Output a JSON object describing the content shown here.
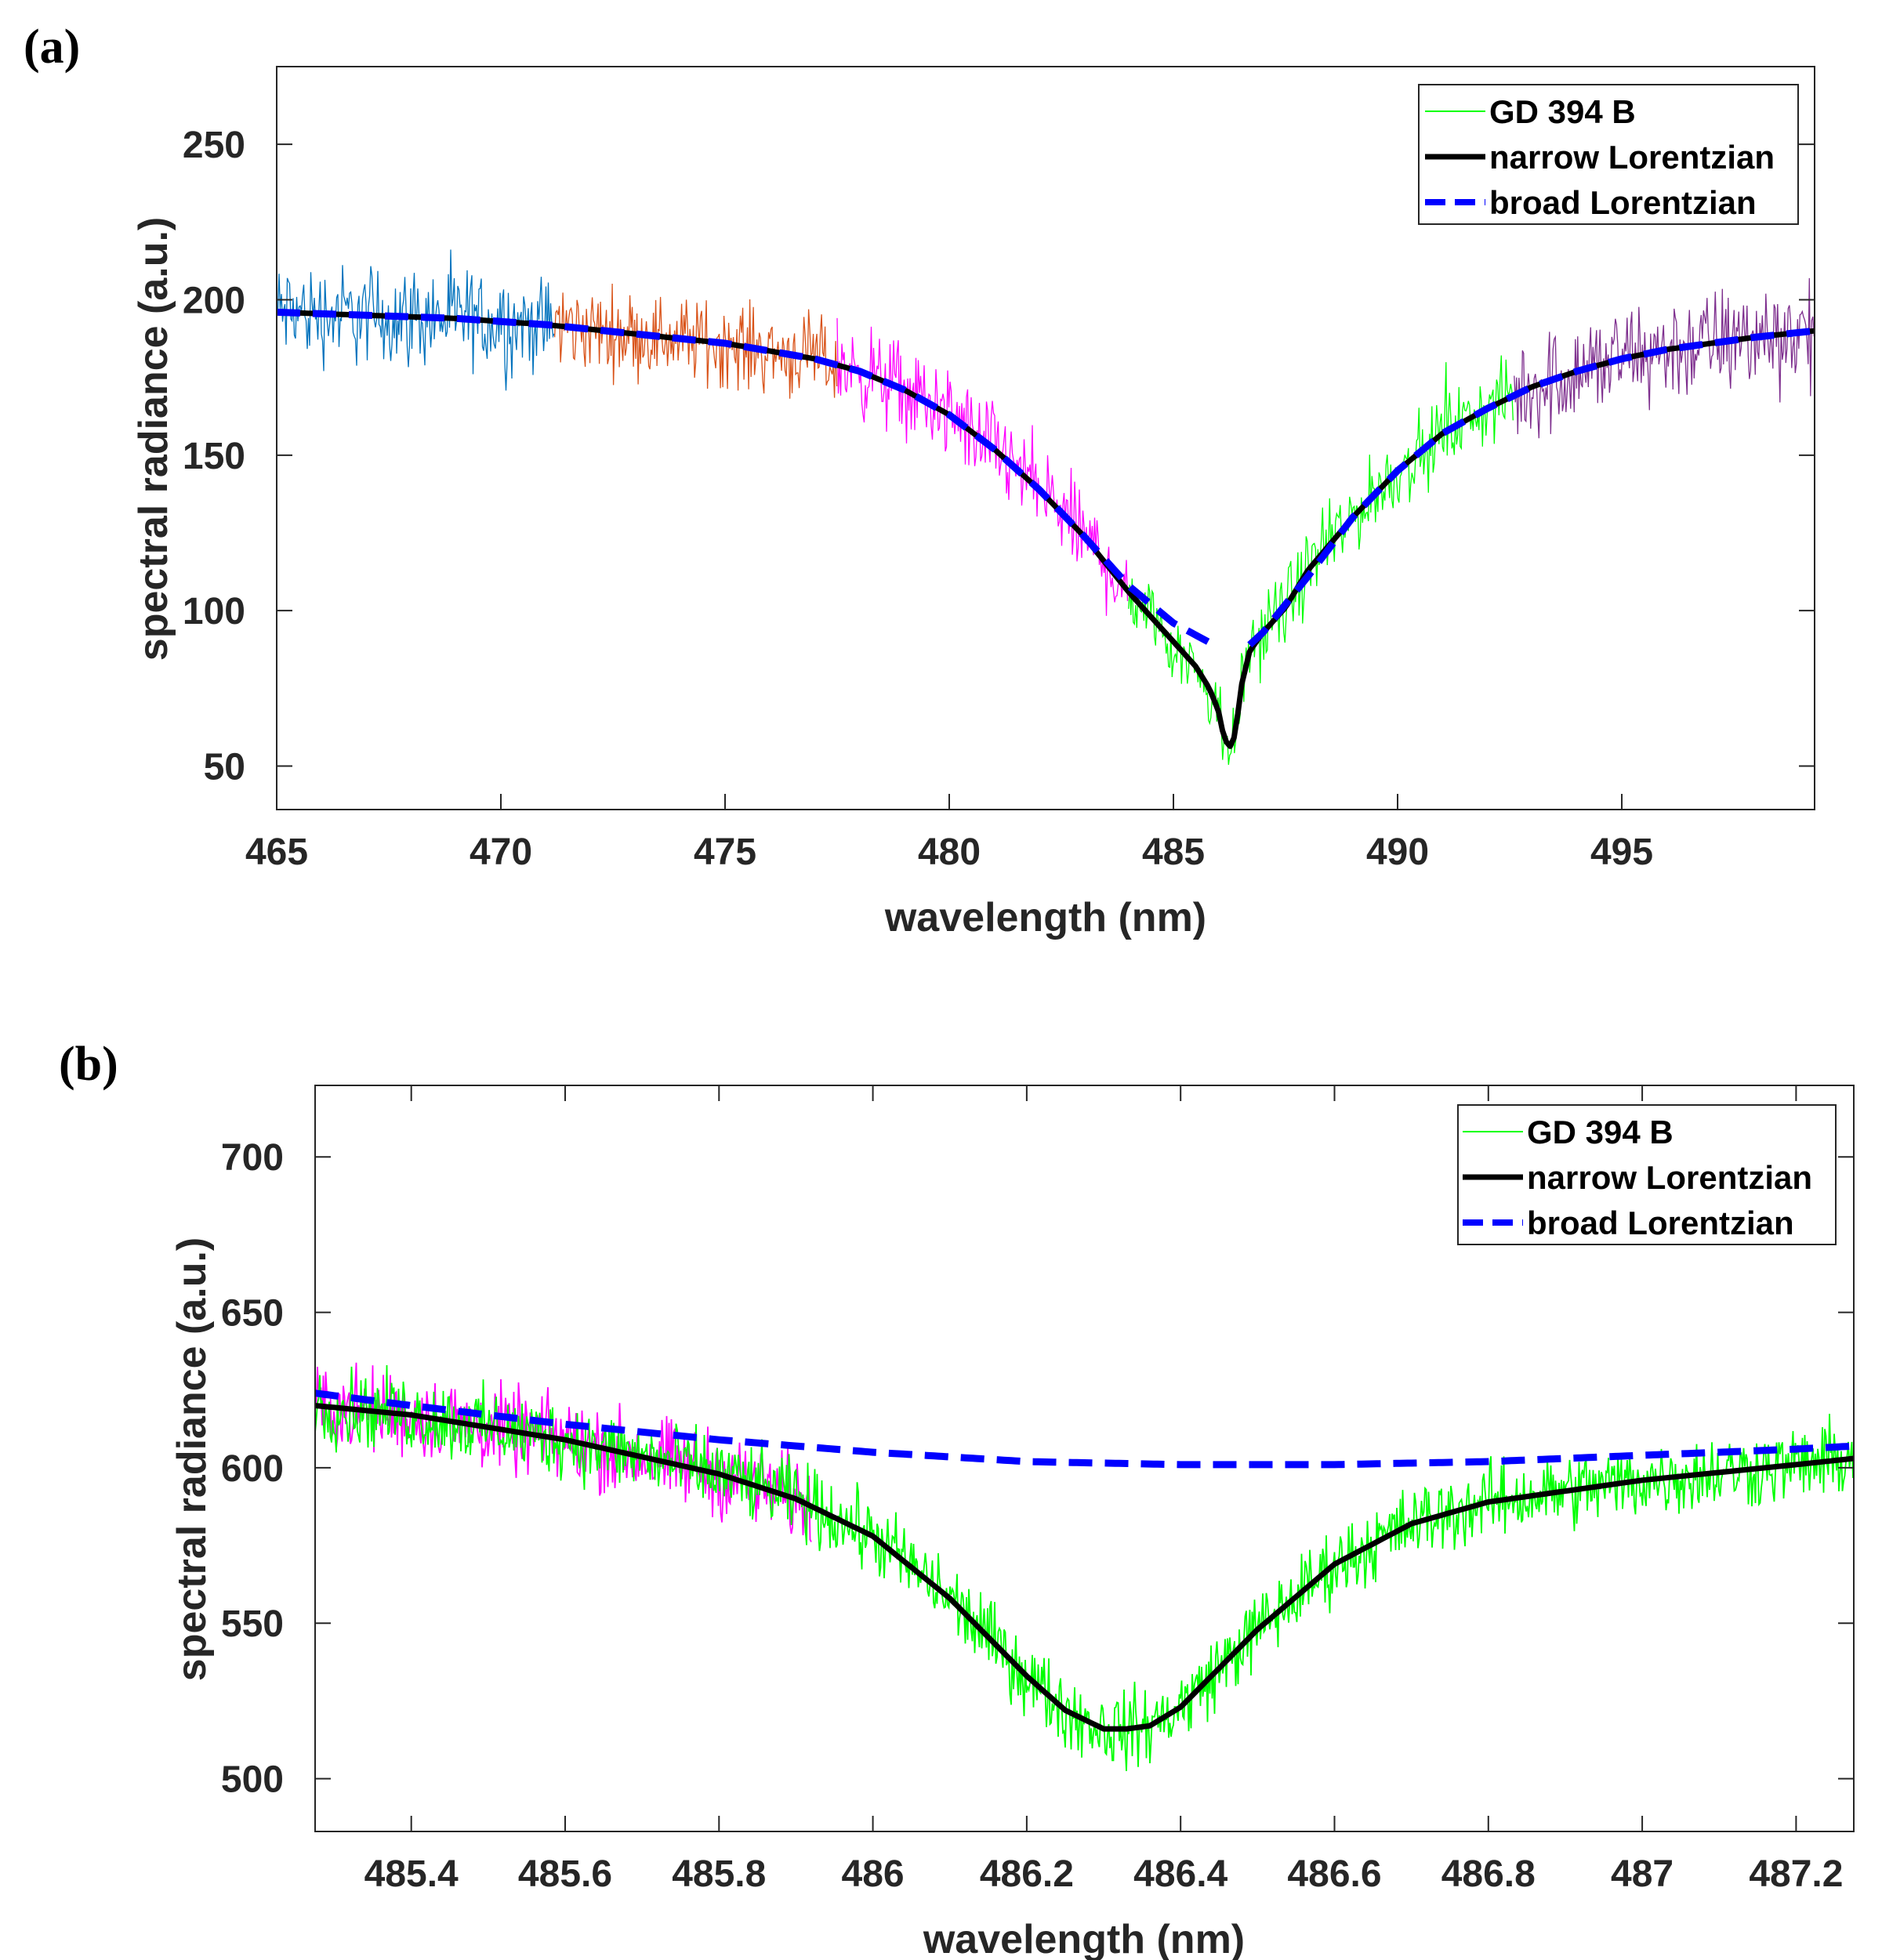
{
  "chart_data": [
    {
      "type": "line",
      "panel_label": "(a)",
      "xlabel": "wavelength (nm)",
      "ylabel": "spectral radiance (a.u.)",
      "xlim": [
        465,
        499.3
      ],
      "ylim": [
        36,
        275
      ],
      "xticks": [
        465,
        470,
        475,
        480,
        485,
        490,
        495
      ],
      "xtick_labels": [
        "465",
        "470",
        "475",
        "480",
        "485",
        "490",
        "495"
      ],
      "yticks": [
        50,
        100,
        150,
        200,
        250
      ],
      "ytick_labels": [
        "50",
        "100",
        "150",
        "200",
        "250"
      ],
      "legend_position": "top-right",
      "legend": [
        "GD 394 B",
        "narrow Lorentzian",
        "broad Lorentzian"
      ],
      "noise_segments": [
        {
          "name": "segment 1",
          "color": "#0072BD",
          "x_start": 465,
          "x_end": 471.2,
          "spread": 24
        },
        {
          "name": "segment 2",
          "color": "#D95319",
          "x_start": 471.2,
          "x_end": 477.5,
          "spread": 20
        },
        {
          "name": "segment 3",
          "color": "#FF00FF",
          "x_start": 477.5,
          "x_end": 484.0,
          "spread": 22
        },
        {
          "name": "segment 4",
          "color": "#00FF00",
          "x_start": 484.0,
          "x_end": 492.6,
          "spread": 18
        },
        {
          "name": "segment 5",
          "color": "#7E2F8E",
          "x_start": 492.6,
          "x_end": 499.3,
          "spread": 26
        }
      ],
      "series": [
        {
          "name": "narrow Lorentzian",
          "color": "#000000",
          "style": "solid",
          "x": [
            465,
            467,
            469,
            471,
            473,
            475,
            477,
            478,
            479,
            480,
            481,
            482,
            483,
            484,
            484.5,
            485,
            485.5,
            485.8,
            486.0,
            486.1,
            486.2,
            486.3,
            486.4,
            486.5,
            486.7,
            487,
            487.5,
            488,
            489,
            490,
            491,
            492,
            493,
            494,
            495,
            496,
            497,
            498,
            499.3
          ],
          "y": [
            196,
            195,
            194,
            192,
            189,
            186,
            181,
            177,
            171,
            163,
            152,
            139,
            124,
            106,
            98,
            90,
            82,
            75,
            68,
            61,
            57,
            56,
            62,
            75,
            87,
            93,
            101,
            113,
            130,
            145,
            157,
            165,
            172,
            177,
            181,
            184,
            186,
            188,
            190
          ]
        },
        {
          "name": "broad Lorentzian",
          "color": "#0000FF",
          "style": "dashed",
          "x_start": 465,
          "x_end": 499.3,
          "center": 486.3,
          "gap": [
            485.9,
            486.7
          ],
          "x": [
            465,
            467,
            469,
            471,
            473,
            475,
            477,
            478,
            479,
            480,
            481,
            482,
            483,
            484,
            485,
            485.9,
            486.7,
            487,
            488,
            489,
            490,
            491,
            492,
            493,
            494,
            495,
            496,
            497,
            498,
            499.3
          ],
          "y": [
            196,
            195,
            194,
            192,
            189,
            186,
            181,
            177,
            171,
            163,
            152,
            139,
            124,
            108,
            96,
            89,
            89,
            93,
            111,
            130,
            145,
            157,
            165,
            172,
            177,
            181,
            184,
            186,
            188,
            190
          ]
        }
      ]
    },
    {
      "type": "line",
      "panel_label": "(b)",
      "xlabel": "wavelength (nm)",
      "ylabel": "spectral radiance (a.u.)",
      "xlim": [
        485.275,
        487.275
      ],
      "ylim": [
        483,
        723
      ],
      "xticks": [
        485.4,
        485.6,
        485.8,
        486,
        486.2,
        486.4,
        486.6,
        486.8,
        487,
        487.2
      ],
      "xtick_labels": [
        "485.4",
        "485.6",
        "485.8",
        "486",
        "486.2",
        "486.4",
        "486.6",
        "486.8",
        "487",
        "487.2"
      ],
      "yticks": [
        500,
        550,
        600,
        650,
        700
      ],
      "ytick_labels": [
        "500",
        "550",
        "600",
        "650",
        "700"
      ],
      "legend_position": "top-right",
      "legend": [
        "GD 394 B",
        "narrow Lorentzian",
        "broad Lorentzian"
      ],
      "noise_segments": [
        {
          "name": "magenta data",
          "color": "#FF00FF",
          "x_start": 485.275,
          "x_end": 485.92,
          "spread": 20
        },
        {
          "name": "green data",
          "color": "#00FF00",
          "x_start": 485.275,
          "x_end": 487.275,
          "spread": 18
        }
      ],
      "series": [
        {
          "name": "narrow Lorentzian",
          "color": "#000000",
          "style": "solid",
          "x": [
            485.275,
            485.4,
            485.6,
            485.8,
            485.9,
            486.0,
            486.1,
            486.2,
            486.25,
            486.3,
            486.33,
            486.36,
            486.4,
            486.5,
            486.6,
            486.7,
            486.8,
            487.0,
            487.2,
            487.275
          ],
          "y": [
            620,
            617,
            609,
            598,
            590,
            578,
            558,
            533,
            522,
            516,
            516,
            517,
            523,
            548,
            569,
            582,
            589,
            596,
            601,
            603
          ]
        },
        {
          "name": "broad Lorentzian",
          "color": "#0000FF",
          "style": "dashed",
          "x": [
            485.275,
            485.4,
            485.6,
            485.8,
            486.0,
            486.2,
            486.4,
            486.6,
            486.8,
            487.0,
            487.2,
            487.275
          ],
          "y": [
            624,
            620,
            614,
            609,
            605,
            602,
            601,
            601,
            602,
            604,
            606,
            607
          ]
        }
      ]
    }
  ]
}
